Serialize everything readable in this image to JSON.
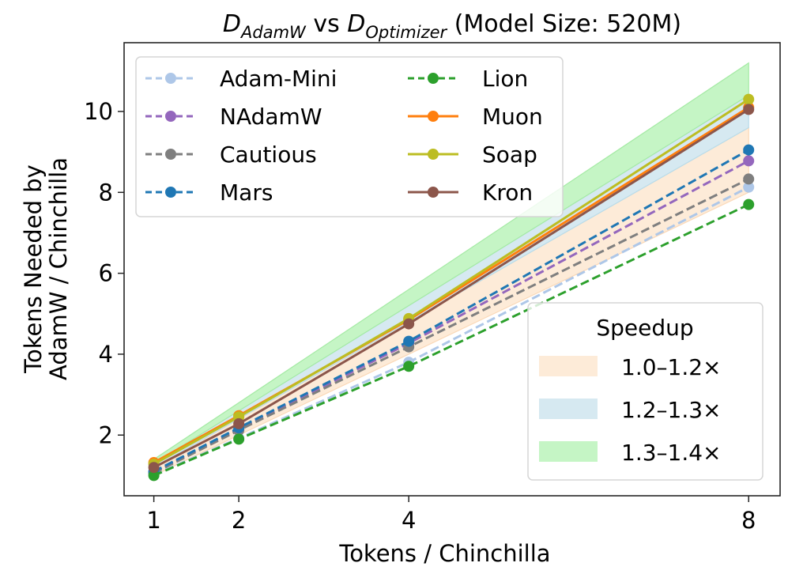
{
  "chart_data": {
    "type": "line",
    "title": {
      "d1": "D",
      "d1_sub": "AdamW",
      "vs": " vs ",
      "d2": "D",
      "d2_sub": "Optimizer",
      "suffix": " (Model Size: 520M)"
    },
    "xlabel": "Tokens / Chinchilla",
    "ylabel_lines": [
      "Tokens Needed by",
      "AdamW / Chinchilla"
    ],
    "x": [
      1,
      2,
      4,
      8
    ],
    "xticks": [
      1,
      2,
      4,
      8
    ],
    "yticks": [
      2,
      4,
      6,
      8,
      10
    ],
    "xlim": [
      0.65,
      8.37
    ],
    "ylim": [
      0.5,
      11.7
    ],
    "grid": false,
    "series": [
      {
        "name": "Adam-Mini",
        "color": "#aec7e8",
        "style": "dashed",
        "values": [
          1.02,
          1.92,
          3.8,
          8.13
        ]
      },
      {
        "name": "NAdamW",
        "color": "#9467bd",
        "style": "dashed",
        "values": [
          1.08,
          2.15,
          4.27,
          8.78
        ]
      },
      {
        "name": "Cautious",
        "color": "#7f7f7f",
        "style": "dashed",
        "values": [
          1.06,
          2.12,
          4.18,
          8.33
        ]
      },
      {
        "name": "Mars",
        "color": "#1f77b4",
        "style": "dashed",
        "values": [
          1.1,
          2.18,
          4.32,
          9.05
        ]
      },
      {
        "name": "Lion",
        "color": "#2ca02c",
        "style": "dashed",
        "values": [
          1.0,
          1.9,
          3.7,
          7.7
        ]
      },
      {
        "name": "Muon",
        "color": "#ff7f0e",
        "style": "solid",
        "values": [
          1.32,
          2.48,
          4.85,
          10.1
        ]
      },
      {
        "name": "Soap",
        "color": "#bcbd22",
        "style": "solid",
        "values": [
          1.28,
          2.45,
          4.88,
          10.3
        ]
      },
      {
        "name": "Kron",
        "color": "#8c564b",
        "style": "solid",
        "values": [
          1.2,
          2.28,
          4.75,
          10.05
        ]
      }
    ],
    "series_legend": {
      "placement": "top-left",
      "columns": 2
    },
    "bands": {
      "title": "Speedup",
      "placement": "lower-right",
      "x_range": [
        1,
        8
      ],
      "items": [
        {
          "label": "1.0–1.2×",
          "low": 1.0,
          "high": 1.2,
          "color": "#fdebd8",
          "edge": "#fbd9b8"
        },
        {
          "label": "1.2–1.3×",
          "low": 1.2,
          "high": 1.3,
          "color": "#d6e9f1",
          "edge": "#b9dcea"
        },
        {
          "label": "1.3–1.4×",
          "low": 1.3,
          "high": 1.4,
          "color": "#c5f5c5",
          "edge": "#a4eaa4"
        }
      ]
    }
  }
}
